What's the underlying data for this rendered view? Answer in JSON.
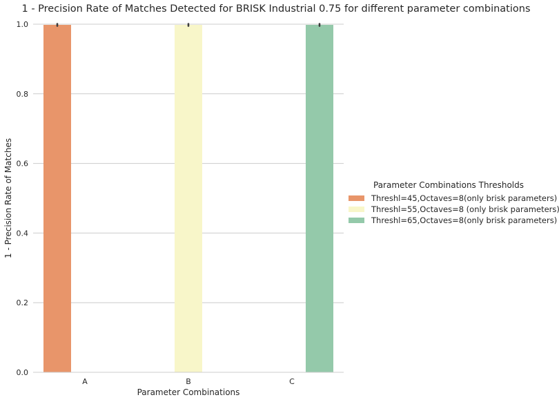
{
  "chart_data": {
    "type": "bar",
    "title": "1 - Precision Rate of Matches Detected for BRISK Industrial 0.75 for different parameter combinations",
    "xlabel": "Parameter Combinations",
    "ylabel": "1 - Precision Rate of Matches",
    "categories": [
      "A",
      "B",
      "C"
    ],
    "ylim": [
      0,
      1.0
    ],
    "yticks": [
      "0.0",
      "0.2",
      "0.4",
      "0.6",
      "0.8",
      "1.0"
    ],
    "grid": true,
    "legend_title": "Parameter Combinations Thresholds",
    "legend_position": "right",
    "series": [
      {
        "name": "Threshl=45,Octaves=8(only brisk parameters)",
        "color": "#e8956a",
        "values": [
          0.998,
          null,
          null
        ],
        "err": [
          0.003,
          null,
          null
        ]
      },
      {
        "name": "Threshl=55,Octaves=8 (only brisk parameters)",
        "color": "#f8f6c9",
        "values": [
          null,
          0.998,
          null
        ],
        "err": [
          null,
          0.003,
          null
        ]
      },
      {
        "name": "Threshl=65,Octaves=8(only brisk parameters)",
        "color": "#94c9aa",
        "values": [
          null,
          null,
          0.998
        ],
        "err": [
          null,
          null,
          0.003
        ]
      }
    ]
  }
}
